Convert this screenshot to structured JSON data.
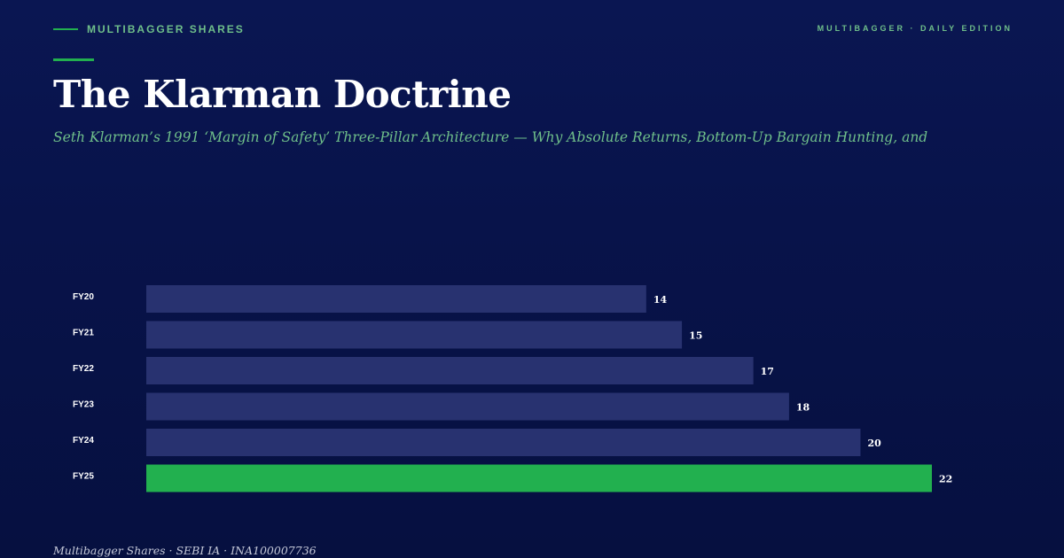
{
  "header": {
    "brand_name": "MULTIBAGGER SHARES",
    "edition": "MULTIBAGGER · DAILY EDITION"
  },
  "title": "The Klarman Doctrine",
  "subtitle": "Seth Klarman’s 1991 ‘Margin of Safety’ Three-Pillar Architecture — Why Absolute Returns, Bottom-Up Bargain Hunting, and",
  "footer": "Multibagger Shares · SEBI IA · INA100007736",
  "colors": {
    "background": "#08134a",
    "bar": "#283270",
    "highlight_bar": "#22b04f",
    "accent": "#6fbf8a"
  },
  "chart_data": {
    "type": "bar",
    "orientation": "horizontal",
    "categories": [
      "FY20",
      "FY21",
      "FY22",
      "FY23",
      "FY24",
      "FY25"
    ],
    "values": [
      14,
      15,
      17,
      18,
      20,
      22
    ],
    "highlight": "FY25",
    "title": "",
    "xlabel": "",
    "ylabel": "",
    "xlim": [
      0,
      22
    ],
    "grid": false
  }
}
